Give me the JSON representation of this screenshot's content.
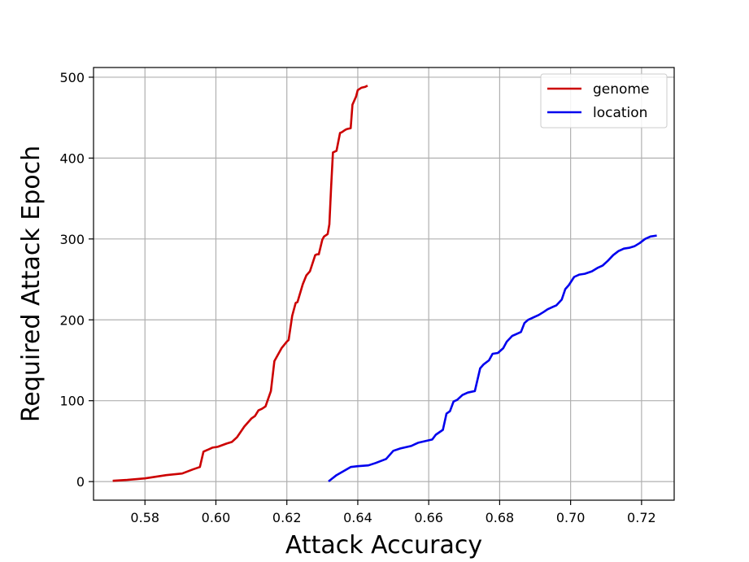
{
  "chart_data": {
    "type": "line",
    "title": "",
    "xlabel": "Attack Accuracy",
    "ylabel": "Required Attack Epoch",
    "xlim": [
      0.5655,
      0.7292
    ],
    "ylim": [
      -23,
      512
    ],
    "xticks": [
      0.58,
      0.6,
      0.62,
      0.64,
      0.66,
      0.68,
      0.7,
      0.72
    ],
    "xtick_labels": [
      "0.58",
      "0.60",
      "0.62",
      "0.64",
      "0.66",
      "0.68",
      "0.70",
      "0.72"
    ],
    "yticks": [
      0,
      100,
      200,
      300,
      400,
      500
    ],
    "ytick_labels": [
      "0",
      "100",
      "200",
      "300",
      "400",
      "500"
    ],
    "grid": true,
    "legend_position": "upper-right",
    "series": [
      {
        "name": "genome",
        "color": "#cc0000",
        "x": [
          0.5712,
          0.575,
          0.58,
          0.583,
          0.586,
          0.5905,
          0.5935,
          0.5955,
          0.5965,
          0.598,
          0.599,
          0.6005,
          0.603,
          0.6045,
          0.606,
          0.608,
          0.61,
          0.611,
          0.612,
          0.613,
          0.614,
          0.6155,
          0.6165,
          0.6185,
          0.62,
          0.6205,
          0.6215,
          0.6225,
          0.623,
          0.6245,
          0.6255,
          0.6265,
          0.628,
          0.6285,
          0.629,
          0.63,
          0.6305,
          0.6315,
          0.632,
          0.6325,
          0.633,
          0.6335,
          0.634,
          0.635,
          0.6355,
          0.6365,
          0.637,
          0.638,
          0.6385,
          0.6395,
          0.64,
          0.641,
          0.642,
          0.6425
        ],
        "y": [
          1,
          2,
          4,
          6,
          8,
          10,
          15,
          18,
          37,
          40,
          42,
          43,
          47,
          49,
          55,
          68,
          78,
          81,
          88,
          90,
          93,
          112,
          149,
          165,
          173,
          175,
          205,
          221,
          222,
          244,
          255,
          260,
          280,
          281,
          281,
          299,
          303,
          306,
          318,
          365,
          407,
          408,
          409,
          431,
          432,
          435,
          436,
          437,
          466,
          476,
          484,
          487,
          488,
          489
        ]
      },
      {
        "name": "location",
        "color": "#0000ee",
        "x": [
          0.632,
          0.634,
          0.636,
          0.638,
          0.64,
          0.643,
          0.645,
          0.648,
          0.65,
          0.652,
          0.655,
          0.657,
          0.659,
          0.661,
          0.662,
          0.664,
          0.665,
          0.666,
          0.667,
          0.668,
          0.6695,
          0.671,
          0.673,
          0.6745,
          0.6755,
          0.677,
          0.678,
          0.6795,
          0.681,
          0.682,
          0.6835,
          0.685,
          0.686,
          0.687,
          0.688,
          0.6895,
          0.691,
          0.6925,
          0.6935,
          0.695,
          0.696,
          0.6975,
          0.6985,
          0.6995,
          0.701,
          0.7025,
          0.704,
          0.706,
          0.7075,
          0.709,
          0.7105,
          0.712,
          0.7135,
          0.715,
          0.7165,
          0.718,
          0.7195,
          0.721,
          0.7225,
          0.724
        ],
        "y": [
          1,
          8,
          13,
          18,
          19,
          20,
          23,
          28,
          38,
          41,
          44,
          48,
          50,
          52,
          58,
          64,
          84,
          87,
          99,
          101,
          107,
          110,
          112,
          140,
          145,
          150,
          158,
          159,
          165,
          173,
          180,
          183,
          185,
          196,
          200,
          203,
          206,
          210,
          213,
          216,
          218,
          225,
          238,
          243,
          253,
          256,
          257,
          260,
          264,
          267,
          273,
          280,
          285,
          288,
          289,
          291,
          295,
          300,
          303,
          304
        ]
      }
    ]
  }
}
